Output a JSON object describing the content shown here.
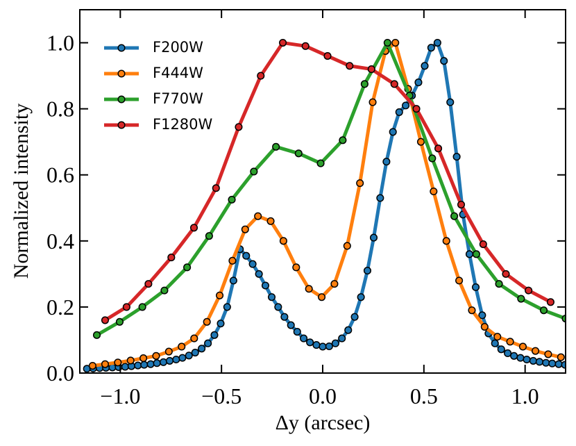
{
  "chart_data": {
    "type": "line",
    "xlabel": "Δy (arcsec)",
    "ylabel": "Normalized intensity",
    "xlim": [
      -1.2,
      1.2
    ],
    "ylim": [
      0,
      1.1
    ],
    "xticks": [
      {
        "value": -1.0,
        "label": "−1.0"
      },
      {
        "value": -0.5,
        "label": "−0.5"
      },
      {
        "value": 0.0,
        "label": "0.0"
      },
      {
        "value": 0.5,
        "label": "0.5"
      },
      {
        "value": 1.0,
        "label": "1.0"
      }
    ],
    "yticks": [
      {
        "value": 0.0,
        "label": "0.0"
      },
      {
        "value": 0.2,
        "label": "0.2"
      },
      {
        "value": 0.4,
        "label": "0.4"
      },
      {
        "value": 0.6,
        "label": "0.6"
      },
      {
        "value": 0.8,
        "label": "0.8"
      },
      {
        "value": 1.0,
        "label": "1.0"
      }
    ],
    "legend": "upper left",
    "series": [
      {
        "name": "F200W",
        "color": "#1f77b4",
        "x": [
          -1.165,
          -1.134,
          -1.102,
          -1.071,
          -1.039,
          -1.008,
          -0.976,
          -0.945,
          -0.913,
          -0.882,
          -0.85,
          -0.819,
          -0.787,
          -0.756,
          -0.724,
          -0.693,
          -0.661,
          -0.63,
          -0.598,
          -0.567,
          -0.535,
          -0.504,
          -0.472,
          -0.441,
          -0.409,
          -0.378,
          -0.346,
          -0.315,
          -0.283,
          -0.252,
          -0.22,
          -0.189,
          -0.157,
          -0.126,
          -0.094,
          -0.063,
          -0.031,
          0.0,
          0.032,
          0.063,
          0.095,
          0.126,
          0.158,
          0.189,
          0.221,
          0.252,
          0.284,
          0.315,
          0.347,
          0.378,
          0.41,
          0.441,
          0.473,
          0.504,
          0.536,
          0.567,
          0.599,
          0.63,
          0.662,
          0.693,
          0.725,
          0.756,
          0.788,
          0.819,
          0.851,
          0.882,
          0.914,
          0.945,
          0.977,
          1.008,
          1.04,
          1.071,
          1.103,
          1.134,
          1.166,
          1.197
        ],
        "values": [
          0.013,
          0.014,
          0.015,
          0.016,
          0.017,
          0.018,
          0.019,
          0.021,
          0.023,
          0.025,
          0.027,
          0.03,
          0.033,
          0.037,
          0.041,
          0.046,
          0.053,
          0.062,
          0.074,
          0.09,
          0.115,
          0.15,
          0.2,
          0.28,
          0.375,
          0.355,
          0.33,
          0.3,
          0.265,
          0.23,
          0.2,
          0.17,
          0.145,
          0.125,
          0.105,
          0.093,
          0.085,
          0.08,
          0.081,
          0.09,
          0.105,
          0.13,
          0.17,
          0.23,
          0.31,
          0.41,
          0.53,
          0.64,
          0.73,
          0.79,
          0.81,
          0.84,
          0.88,
          0.93,
          0.985,
          1.0,
          0.945,
          0.82,
          0.655,
          0.48,
          0.36,
          0.26,
          0.175,
          0.12,
          0.09,
          0.072,
          0.06,
          0.052,
          0.046,
          0.041,
          0.037,
          0.034,
          0.031,
          0.029,
          0.027,
          0.025
        ]
      },
      {
        "name": "F444W",
        "color": "#ff7f0e",
        "x": [
          -1.137,
          -1.075,
          -1.012,
          -0.949,
          -0.886,
          -0.823,
          -0.76,
          -0.697,
          -0.635,
          -0.572,
          -0.509,
          -0.446,
          -0.383,
          -0.32,
          -0.257,
          -0.194,
          -0.131,
          -0.068,
          -0.005,
          0.058,
          0.121,
          0.184,
          0.247,
          0.31,
          0.359,
          0.422,
          0.485,
          0.548,
          0.611,
          0.674,
          0.737,
          0.8,
          0.863,
          0.926,
          0.989,
          1.051,
          1.114,
          1.177
        ],
        "values": [
          0.022,
          0.027,
          0.032,
          0.038,
          0.045,
          0.052,
          0.065,
          0.08,
          0.105,
          0.155,
          0.235,
          0.34,
          0.435,
          0.475,
          0.46,
          0.4,
          0.32,
          0.255,
          0.23,
          0.27,
          0.385,
          0.575,
          0.82,
          0.975,
          1.0,
          0.86,
          0.7,
          0.55,
          0.4,
          0.28,
          0.19,
          0.14,
          0.11,
          0.095,
          0.08,
          0.067,
          0.057,
          0.048
        ]
      },
      {
        "name": "F770W",
        "color": "#2ca02c",
        "x": [
          -1.116,
          -1.003,
          -0.891,
          -0.782,
          -0.67,
          -0.561,
          -0.449,
          -0.34,
          -0.231,
          -0.119,
          -0.01,
          0.099,
          0.207,
          0.32,
          0.429,
          0.541,
          0.65,
          0.759,
          0.871,
          0.98,
          1.092,
          1.2
        ],
        "values": [
          0.115,
          0.155,
          0.2,
          0.25,
          0.32,
          0.415,
          0.525,
          0.61,
          0.685,
          0.665,
          0.635,
          0.705,
          0.875,
          1.0,
          0.84,
          0.65,
          0.475,
          0.36,
          0.27,
          0.225,
          0.19,
          0.165
        ]
      },
      {
        "name": "F1280W",
        "color": "#d62728",
        "x": [
          -1.075,
          -0.969,
          -0.861,
          -0.748,
          -0.636,
          -0.527,
          -0.415,
          -0.306,
          -0.197,
          -0.085,
          0.024,
          0.133,
          0.241,
          0.354,
          0.463,
          0.571,
          0.684,
          0.793,
          0.905,
          1.017,
          1.126
        ],
        "values": [
          0.16,
          0.2,
          0.27,
          0.35,
          0.44,
          0.56,
          0.745,
          0.9,
          1.0,
          0.99,
          0.96,
          0.93,
          0.92,
          0.875,
          0.8,
          0.68,
          0.51,
          0.39,
          0.3,
          0.25,
          0.215
        ]
      }
    ]
  }
}
